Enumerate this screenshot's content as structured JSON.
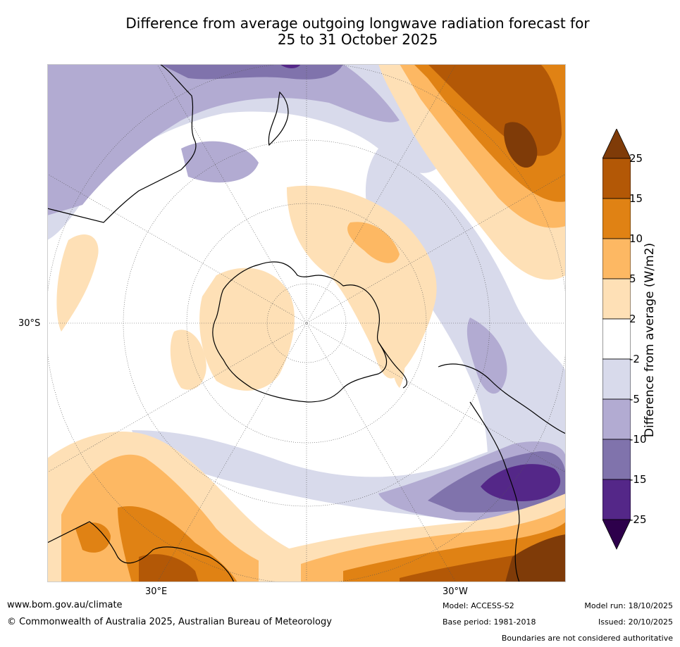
{
  "title": {
    "line1": "Difference from average outgoing longwave radiation forecast for",
    "line2": "25 to 31 October 2025"
  },
  "map": {
    "lat_label": "30°S",
    "lon_labels": [
      "30°E",
      "30°W"
    ]
  },
  "colorbar": {
    "label": "Difference from average (W/m2)",
    "ticks": [
      "25",
      "15",
      "10",
      "5",
      "2",
      "-2",
      "-5",
      "-10",
      "-15",
      "-25"
    ],
    "colors": [
      "#7f3b08",
      "#b35806",
      "#e08214",
      "#fdb863",
      "#fee0b6",
      "#ffffff",
      "#d8daeb",
      "#b2abd2",
      "#8073ac",
      "#542788",
      "#2d004b"
    ]
  },
  "footer": {
    "url": "www.bom.gov.au/climate",
    "copyright": "© Commonwealth of Australia 2025, Australian Bureau of Meteorology",
    "model": "Model: ACCESS-S2",
    "base_period": "Base period: 1981-2018",
    "model_run": "Model run: 18/10/2025",
    "issued": "Issued: 20/10/2025",
    "disclaimer": "Boundaries are not considered authoritative"
  }
}
